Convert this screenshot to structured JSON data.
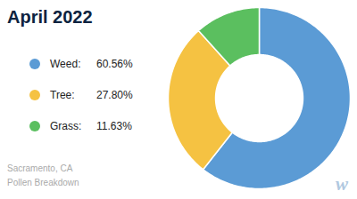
{
  "chart_data": {
    "type": "pie",
    "title": "April 2022",
    "subtitle": "Sacramento, CA\nPollen Breakdown",
    "categories": [
      "Weed:",
      "Tree:",
      "Grass:"
    ],
    "values": [
      60.56,
      27.8,
      11.63
    ],
    "value_labels": [
      "60.56%",
      "27.80%",
      "11.63%"
    ],
    "colors": [
      "#5B9BD5",
      "#F5C242",
      "#5BBF5F"
    ],
    "legend": "left",
    "annotations": [
      "w"
    ]
  }
}
